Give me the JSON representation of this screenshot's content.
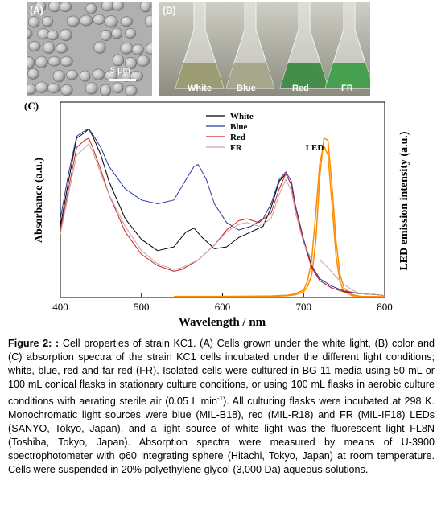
{
  "panel_a": {
    "label": "(A)",
    "scale_bar": "5 μm"
  },
  "panel_b": {
    "label": "(B)",
    "flasks": [
      "White",
      "Blue",
      "Red",
      "FR"
    ],
    "flask_colors": [
      "#9a9a70",
      "#a5a58a",
      "#3d8a45",
      "#3f9e4a"
    ]
  },
  "chart_data": {
    "panel_label": "(C)",
    "type": "line",
    "xlabel": "Wavelength / nm",
    "ylabel_left": "Absorbance (a.u.)",
    "ylabel_right": "LED emission intensity (a.u.)",
    "xlim": [
      400,
      800
    ],
    "ylim": [
      0,
      1
    ],
    "xticks": [
      "400",
      "500",
      "600",
      "700",
      "800"
    ],
    "legend_position": "top-center",
    "series": [
      {
        "name": "White",
        "color": "#000000",
        "x": [
          400,
          410,
          420,
          430,
          435,
          440,
          450,
          460,
          480,
          500,
          520,
          540,
          555,
          565,
          575,
          590,
          605,
          620,
          635,
          650,
          660,
          670,
          678,
          685,
          690,
          700,
          710,
          720,
          735,
          750,
          770,
          790,
          800
        ],
        "y": [
          0.38,
          0.62,
          0.85,
          0.88,
          0.9,
          0.86,
          0.76,
          0.62,
          0.42,
          0.31,
          0.25,
          0.27,
          0.35,
          0.37,
          0.32,
          0.26,
          0.27,
          0.32,
          0.35,
          0.38,
          0.48,
          0.62,
          0.66,
          0.6,
          0.48,
          0.3,
          0.16,
          0.09,
          0.05,
          0.03,
          0.02,
          0.015,
          0.01
        ]
      },
      {
        "name": "Blue",
        "color": "#2a3aa0",
        "x": [
          400,
          410,
          420,
          430,
          435,
          440,
          450,
          460,
          480,
          500,
          520,
          540,
          555,
          565,
          570,
          580,
          590,
          605,
          620,
          635,
          650,
          660,
          670,
          678,
          685,
          690,
          700,
          710,
          720,
          735,
          750,
          770,
          790,
          800
        ],
        "y": [
          0.42,
          0.66,
          0.86,
          0.89,
          0.9,
          0.87,
          0.8,
          0.7,
          0.58,
          0.52,
          0.5,
          0.52,
          0.63,
          0.7,
          0.71,
          0.63,
          0.5,
          0.4,
          0.36,
          0.38,
          0.42,
          0.5,
          0.63,
          0.67,
          0.62,
          0.49,
          0.31,
          0.17,
          0.1,
          0.06,
          0.035,
          0.02,
          0.015,
          0.01
        ]
      },
      {
        "name": "Red",
        "color": "#cc2222",
        "x": [
          400,
          410,
          420,
          430,
          435,
          440,
          450,
          460,
          480,
          500,
          520,
          540,
          550,
          570,
          590,
          605,
          620,
          630,
          645,
          660,
          670,
          678,
          685,
          690,
          700,
          710,
          720,
          735,
          750,
          770,
          790,
          800
        ],
        "y": [
          0.36,
          0.58,
          0.8,
          0.84,
          0.85,
          0.8,
          0.68,
          0.55,
          0.35,
          0.23,
          0.17,
          0.14,
          0.15,
          0.2,
          0.28,
          0.36,
          0.41,
          0.42,
          0.4,
          0.45,
          0.58,
          0.66,
          0.6,
          0.48,
          0.3,
          0.16,
          0.09,
          0.05,
          0.03,
          0.02,
          0.015,
          0.01
        ]
      },
      {
        "name": "FR",
        "color": "#c8a3a3",
        "x": [
          400,
          410,
          420,
          430,
          435,
          440,
          450,
          460,
          480,
          500,
          520,
          540,
          550,
          570,
          590,
          605,
          620,
          630,
          645,
          660,
          670,
          678,
          685,
          690,
          700,
          710,
          720,
          730,
          740,
          750,
          760,
          770,
          790,
          800
        ],
        "y": [
          0.34,
          0.55,
          0.76,
          0.8,
          0.82,
          0.78,
          0.66,
          0.55,
          0.38,
          0.25,
          0.18,
          0.15,
          0.16,
          0.2,
          0.28,
          0.35,
          0.39,
          0.4,
          0.38,
          0.42,
          0.55,
          0.63,
          0.57,
          0.45,
          0.29,
          0.2,
          0.2,
          0.16,
          0.11,
          0.07,
          0.04,
          0.02,
          0.015,
          0.01
        ]
      }
    ],
    "led_series": [
      {
        "color": "#ff8c00",
        "label": "LED",
        "x": [
          540,
          600,
          660,
          680,
          690,
          700,
          705,
          710,
          715,
          720,
          725,
          730,
          735,
          740,
          745,
          750,
          760,
          770,
          800
        ],
        "y": [
          0.004,
          0.004,
          0.006,
          0.01,
          0.015,
          0.03,
          0.06,
          0.12,
          0.3,
          0.65,
          0.85,
          0.84,
          0.6,
          0.3,
          0.12,
          0.05,
          0.015,
          0.006,
          0.004
        ]
      },
      {
        "color": "#ff8c00",
        "label": "",
        "x": [
          540,
          600,
          660,
          680,
          690,
          700,
          705,
          710,
          715,
          720,
          725,
          730,
          735,
          740,
          745,
          750,
          760,
          770,
          800
        ],
        "y": [
          0.006,
          0.006,
          0.008,
          0.012,
          0.02,
          0.04,
          0.09,
          0.2,
          0.45,
          0.72,
          0.81,
          0.76,
          0.5,
          0.22,
          0.08,
          0.03,
          0.01,
          0.006,
          0.004
        ]
      }
    ]
  },
  "caption": {
    "figure_label": "Figure 2:",
    "colon_mark": ":",
    "text": " Cell properties of strain KC1. (A) Cells grown under the white light, (B) color and (C) absorption spectra of the strain KC1 cells incubated under the different light conditions; white, blue, red and far red (FR).  Isolated cells were cultured in BG-11 media using 50 mL or 100 mL conical flasks in stationary culture conditions, or using 100 mL flasks in aerobic culture conditions with aerating sterile air (0.05 L min",
    "superscript": "-1",
    "text2": ").  All culturing flasks were incubated at 298 K. Monochromatic light sources were blue (MIL-B18), red (MIL-R18) and FR (MIL-IF18) LEDs (SANYO, Tokyo, Japan), and a light source of white light was the fluorescent light FL8N (Toshiba, Tokyo, Japan).  Absorption spectra were measured by means of U-3900 spectrophotometer with φ60 integrating sphere (Hitachi, Tokyo, Japan) at room temperature. Cells were suspended in 20% polyethylene glycol (3,000 Da) aqueous solutions."
  }
}
